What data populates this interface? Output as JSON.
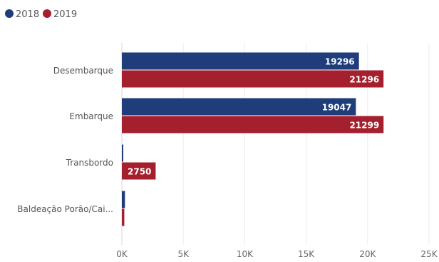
{
  "chart_data": {
    "type": "bar",
    "orientation": "horizontal",
    "categories": [
      "Desembarque",
      "Embarque",
      "Transbordo",
      "Baldeação Porão/Cai..."
    ],
    "series": [
      {
        "name": "2018",
        "color": "#1f3d7a",
        "values": [
          19296,
          19047,
          30,
          250
        ],
        "labels": [
          "19296",
          "19047",
          "",
          ""
        ]
      },
      {
        "name": "2019",
        "color": "#a4202e",
        "values": [
          21296,
          21299,
          2750,
          200
        ],
        "labels": [
          "21296",
          "21299",
          "2750",
          ""
        ]
      }
    ],
    "xlim": [
      0,
      25000
    ],
    "xticks": [
      0,
      5000,
      10000,
      15000,
      20000,
      25000
    ],
    "xtick_labels": [
      "0K",
      "5K",
      "10K",
      "15K",
      "20K",
      "25K"
    ],
    "grid": true,
    "legend_position": "top-left"
  }
}
